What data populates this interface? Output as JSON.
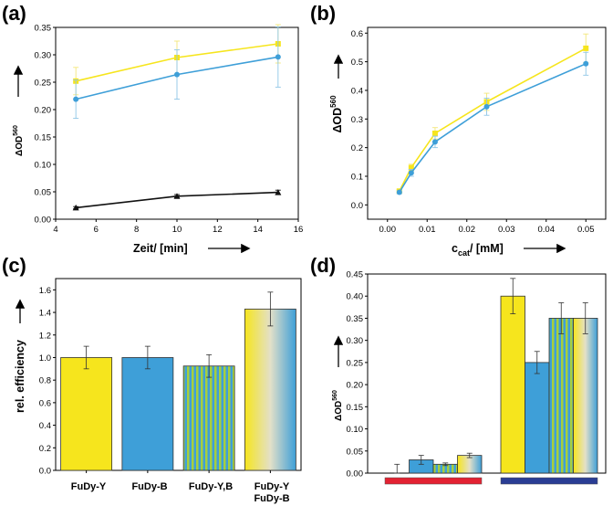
{
  "colors": {
    "yellow": "#f6e51d",
    "blue": "#3e9fd8",
    "black": "#111111",
    "red": "#e32232",
    "navy": "#2a3d94",
    "errorbar_yellow": "#f3e77a",
    "errorbar_blue": "#8fc6e6"
  },
  "chart_data": [
    {
      "panel": "(a)",
      "type": "line",
      "xlabel": "Zeit/ [min]",
      "ylabel": "ΔOD560",
      "xlim": [
        4,
        16
      ],
      "ylim": [
        0,
        0.35
      ],
      "xticks": [
        "4",
        "6",
        "8",
        "10",
        "12",
        "14",
        "16"
      ],
      "yticks": [
        "0.00",
        "0.05",
        "0.10",
        "0.15",
        "0.20",
        "0.25",
        "0.30",
        "0.35"
      ],
      "x": [
        5,
        10,
        15
      ],
      "series": [
        {
          "color": "yellow",
          "marker": "square",
          "values": [
            0.252,
            0.295,
            0.32
          ],
          "errors": [
            0.025,
            0.03,
            0.035
          ]
        },
        {
          "color": "blue",
          "marker": "circle",
          "values": [
            0.219,
            0.264,
            0.296
          ],
          "errors": [
            0.035,
            0.045,
            0.055
          ]
        },
        {
          "color": "black",
          "marker": "triangle",
          "values": [
            0.021,
            0.042,
            0.049
          ],
          "errors": [
            0.002,
            0.003,
            0.004
          ]
        }
      ]
    },
    {
      "panel": "(b)",
      "type": "line",
      "xlabel": "ccat/ [mM]",
      "ylabel": "ΔOD560",
      "xlim": [
        -0.005,
        0.055
      ],
      "ylim": [
        -0.05,
        0.62
      ],
      "xticks": [
        "0.00",
        "0.01",
        "0.02",
        "0.03",
        "0.04",
        "0.05"
      ],
      "yticks": [
        "0.0",
        "0.1",
        "0.2",
        "0.3",
        "0.4",
        "0.5",
        "0.6"
      ],
      "x": [
        0.003,
        0.006,
        0.012,
        0.025,
        0.05
      ],
      "series": [
        {
          "color": "yellow",
          "marker": "square",
          "values": [
            0.048,
            0.13,
            0.25,
            0.36,
            0.547
          ],
          "errors": [
            0.005,
            0.012,
            0.02,
            0.03,
            0.05
          ]
        },
        {
          "color": "blue",
          "marker": "circle",
          "values": [
            0.044,
            0.112,
            0.22,
            0.343,
            0.493
          ],
          "errors": [
            0.005,
            0.012,
            0.02,
            0.03,
            0.04
          ]
        }
      ]
    },
    {
      "panel": "(c)",
      "type": "bar",
      "ylabel": "rel. efficiency",
      "ylim": [
        0,
        1.7
      ],
      "yticks": [
        "0.0",
        "0.2",
        "0.4",
        "0.6",
        "0.8",
        "1.0",
        "1.2",
        "1.4",
        "1.6"
      ],
      "categories": [
        "FuDy-Y",
        "FuDy-B",
        "FuDy-Y,B",
        "FuDy-Y\nFuDy-B"
      ],
      "values": [
        1.0,
        1.0,
        0.925,
        1.43
      ],
      "errors": [
        0.1,
        0.1,
        0.1,
        0.15
      ],
      "fills": [
        "yellow",
        "blue",
        "stripes",
        "gradient"
      ]
    },
    {
      "panel": "(d)",
      "type": "bar",
      "ylabel": "ΔOD560",
      "ylim": [
        0,
        0.45
      ],
      "yticks": [
        "0.00",
        "0.05",
        "0.10",
        "0.15",
        "0.20",
        "0.25",
        "0.30",
        "0.35",
        "0.40",
        "0.45"
      ],
      "groups": [
        {
          "bar_color": "red",
          "values": [
            0.0,
            0.03,
            0.02,
            0.04
          ],
          "errors": [
            0.02,
            0.01,
            0.003,
            0.005
          ]
        },
        {
          "bar_color": "navy",
          "values": [
            0.4,
            0.25,
            0.35,
            0.35
          ],
          "errors": [
            0.04,
            0.025,
            0.035,
            0.035
          ]
        }
      ],
      "fills": [
        "yellow",
        "blue",
        "stripes",
        "gradient"
      ]
    }
  ],
  "labels": {
    "a": "(a)",
    "b": "(b)",
    "c": "(c)",
    "d": "(d)",
    "a_xlabel": "Zeit/ [min]",
    "b_xlabel_c": "c",
    "b_xlabel_sub": "cat",
    "b_xlabel_rest": "/ [mM]",
    "od_main": "ΔOD",
    "od_sup": "560",
    "c_ylabel": "rel. efficiency",
    "cat1": "FuDy-Y",
    "cat2": "FuDy-B",
    "cat3": "FuDy-Y,B",
    "cat4a": "FuDy-Y",
    "cat4b": "FuDy-B"
  }
}
